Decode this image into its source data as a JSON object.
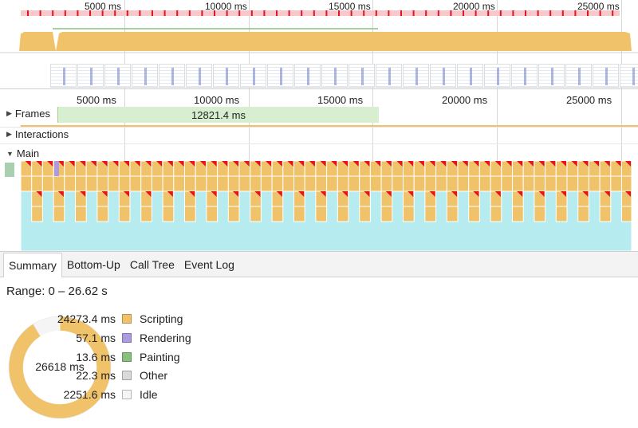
{
  "colors": {
    "scripting": "#f0c36b",
    "rendering": "#ae9bdf",
    "painting": "#89c07d",
    "other": "#dadada",
    "idle": "#f5f5f5",
    "frame_bar": "#d7efd0",
    "cyan": "#b6ecf0",
    "red": "#e8121f",
    "overview_red": "#f8c9cb"
  },
  "overview": {
    "ticks": [
      "5000 ms",
      "10000 ms",
      "15000 ms",
      "20000 ms",
      "25000 ms"
    ]
  },
  "timeline": {
    "ticks": [
      "5000 ms",
      "10000 ms",
      "15000 ms",
      "20000 ms",
      "25000 ms"
    ],
    "frames_label": "Frames",
    "frame_duration": "12821.4 ms",
    "interactions_label": "Interactions",
    "main_label": "Main"
  },
  "tabs": [
    "Summary",
    "Bottom-Up",
    "Call Tree",
    "Event Log"
  ],
  "summary": {
    "range": "Range: 0 – 26.62 s",
    "total": "26618 ms",
    "legend": [
      {
        "value": "24273.4 ms",
        "label": "Scripting",
        "color": "#f0c36b",
        "ms": 24273.4
      },
      {
        "value": "57.1 ms",
        "label": "Rendering",
        "color": "#ae9bdf",
        "ms": 57.1
      },
      {
        "value": "13.6 ms",
        "label": "Painting",
        "color": "#89c07d",
        "ms": 13.6
      },
      {
        "value": "22.3 ms",
        "label": "Other",
        "color": "#dadada",
        "ms": 22.3
      },
      {
        "value": "2251.6 ms",
        "label": "Idle",
        "color": "#f5f5f5",
        "ms": 2251.6
      }
    ]
  }
}
